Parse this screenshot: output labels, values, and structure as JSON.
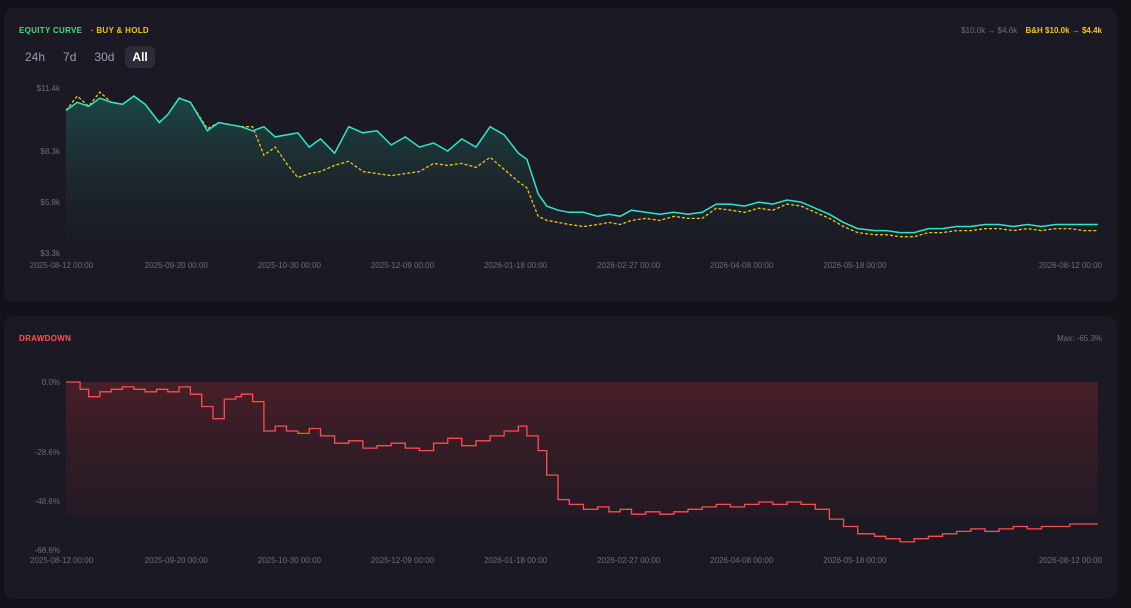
{
  "equity": {
    "title": "EQUITY CURVE",
    "bh_title": "· BUY & HOLD",
    "summary_strategy": "$10.0k → $4.6k",
    "summary_bh": "B&H $10.0k → $4.4k",
    "tabs": [
      {
        "label": "24h",
        "active": false
      },
      {
        "label": "7d",
        "active": false
      },
      {
        "label": "30d",
        "active": false
      },
      {
        "label": "All",
        "active": true
      }
    ]
  },
  "drawdown": {
    "title": "DRAWDOWN",
    "max_label": "Max: -65.3%"
  },
  "colors": {
    "strategy": "#2ee6c6",
    "buy_hold": "#f1c40f",
    "drawdown": "#ff4d4d"
  },
  "chart_data": [
    {
      "type": "line",
      "title": "EQUITY CURVE",
      "y_ticks": [
        "$11.4k",
        "$8.3k",
        "$5.8k",
        "$3.3k"
      ],
      "y_tick_values": [
        11400,
        8300,
        5800,
        3300
      ],
      "x_ticks": [
        "2025-08-12 00:00",
        "2025-09-20 00:00",
        "2025-10-30 00:00",
        "2025-12-09 00:00",
        "2026-01-18 00:00",
        "2026-02-27 00:00",
        "2026-04-08 00:00",
        "2026-05-18 00:00",
        "2026-08-12 00:00"
      ],
      "x_tick_days": [
        0,
        39,
        79,
        119,
        159,
        199,
        239,
        279,
        365
      ],
      "ylim": [
        3300,
        11400
      ],
      "x_range_days": [
        0,
        365
      ],
      "series": [
        {
          "x": [
            0,
            4,
            8,
            12,
            16,
            20,
            24,
            28,
            33,
            36,
            40,
            44,
            50,
            54,
            58,
            62,
            66,
            70,
            74,
            78,
            82,
            86,
            90,
            95,
            100,
            105,
            110,
            115,
            120,
            125,
            130,
            135,
            140,
            145,
            150,
            155,
            160,
            163,
            167,
            170,
            174,
            178,
            183,
            188,
            192,
            196,
            200,
            205,
            210,
            215,
            220,
            225,
            230,
            235,
            240,
            245,
            250,
            255,
            260,
            265,
            270,
            275,
            280,
            286,
            290,
            295,
            300,
            305,
            310,
            315,
            320,
            325,
            330,
            335,
            340,
            345,
            350,
            355,
            360,
            365
          ],
          "values": [
            10300,
            10700,
            10500,
            10900,
            10700,
            10600,
            11000,
            10600,
            9700,
            10100,
            10900,
            10700,
            9300,
            9700,
            9600,
            9500,
            9300,
            9500,
            9000,
            9100,
            9200,
            8500,
            8900,
            8200,
            9500,
            9200,
            9300,
            8600,
            9000,
            8500,
            8700,
            8300,
            8900,
            8500,
            9500,
            9100,
            8200,
            7900,
            6200,
            5600,
            5400,
            5300,
            5300,
            5100,
            5200,
            5100,
            5400,
            5300,
            5200,
            5300,
            5200,
            5300,
            5700,
            5700,
            5600,
            5800,
            5700,
            5900,
            5800,
            5500,
            5200,
            4800,
            4500,
            4400,
            4400,
            4300,
            4300,
            4500,
            4500,
            4600,
            4600,
            4700,
            4700,
            4600,
            4700,
            4600,
            4700,
            4700,
            4700,
            4700
          ]
        },
        {
          "x": [
            0,
            4,
            8,
            12,
            16,
            20,
            24,
            28,
            33,
            36,
            40,
            44,
            50,
            54,
            58,
            62,
            66,
            70,
            74,
            78,
            82,
            86,
            90,
            95,
            100,
            105,
            110,
            115,
            120,
            125,
            130,
            135,
            140,
            145,
            150,
            155,
            160,
            163,
            167,
            170,
            174,
            178,
            183,
            188,
            192,
            196,
            200,
            205,
            210,
            215,
            220,
            225,
            230,
            235,
            240,
            245,
            250,
            255,
            260,
            265,
            270,
            275,
            280,
            286,
            290,
            295,
            300,
            305,
            310,
            315,
            320,
            325,
            330,
            335,
            340,
            345,
            350,
            355,
            360,
            365
          ],
          "values": [
            10300,
            11000,
            10500,
            11200,
            10700,
            10600,
            11000,
            10600,
            9700,
            10100,
            10900,
            10700,
            9400,
            9700,
            9600,
            9500,
            9500,
            8100,
            8500,
            7700,
            7000,
            7200,
            7300,
            7600,
            7800,
            7300,
            7200,
            7100,
            7200,
            7300,
            7700,
            7600,
            7700,
            7500,
            8000,
            7400,
            6800,
            6500,
            5100,
            4900,
            4800,
            4700,
            4600,
            4700,
            4800,
            4700,
            4900,
            5000,
            4900,
            5100,
            5000,
            5000,
            5500,
            5400,
            5300,
            5500,
            5400,
            5700,
            5600,
            5300,
            5000,
            4600,
            4300,
            4200,
            4200,
            4100,
            4100,
            4300,
            4300,
            4400,
            4400,
            4500,
            4500,
            4400,
            4500,
            4400,
            4500,
            4500,
            4400,
            4400
          ]
        }
      ]
    },
    {
      "type": "area",
      "title": "DRAWDOWN",
      "y_ticks": [
        "0.0%",
        "-28.6%",
        "-48.6%",
        "-68.6%"
      ],
      "y_tick_values": [
        0,
        -28.6,
        -48.6,
        -68.6
      ],
      "x_ticks": [
        "2025-08-12 00:00",
        "2025-09-20 00:00",
        "2025-10-30 00:00",
        "2025-12-09 00:00",
        "2026-01-18 00:00",
        "2026-02-27 00:00",
        "2026-04-08 00:00",
        "2026-05-18 00:00",
        "2026-08-12 00:00"
      ],
      "x_tick_days": [
        0,
        39,
        79,
        119,
        159,
        199,
        239,
        279,
        365
      ],
      "ylim": [
        -68.6,
        0
      ],
      "x_range_days": [
        0,
        365
      ],
      "series": [
        {
          "x": [
            0,
            5,
            8,
            12,
            16,
            20,
            24,
            28,
            32,
            36,
            40,
            44,
            48,
            52,
            56,
            60,
            62,
            66,
            70,
            74,
            78,
            82,
            86,
            90,
            95,
            100,
            105,
            110,
            115,
            120,
            125,
            130,
            135,
            140,
            145,
            150,
            155,
            160,
            163,
            167,
            170,
            174,
            178,
            183,
            188,
            192,
            196,
            200,
            205,
            210,
            215,
            220,
            225,
            230,
            235,
            240,
            245,
            250,
            255,
            260,
            265,
            270,
            275,
            280,
            286,
            290,
            295,
            300,
            305,
            310,
            315,
            320,
            325,
            330,
            335,
            340,
            345,
            350,
            355,
            360,
            365
          ],
          "values": [
            0,
            -3,
            -6,
            -4,
            -3,
            -2,
            -3,
            -4,
            -3,
            -4,
            -2,
            -5,
            -10,
            -15,
            -7,
            -6,
            -5,
            -8,
            -20,
            -18,
            -20,
            -21,
            -19,
            -22,
            -25,
            -24,
            -27,
            -26,
            -25,
            -27,
            -28,
            -25,
            -23,
            -26,
            -24,
            -22,
            -20,
            -18,
            -22,
            -28,
            -38,
            -48,
            -50,
            -52,
            -51,
            -53,
            -52,
            -54,
            -53,
            -54,
            -53,
            -52,
            -51,
            -50,
            -51,
            -50,
            -49,
            -50,
            -49,
            -50,
            -52,
            -56,
            -59,
            -62,
            -63,
            -64,
            -65.3,
            -64,
            -63,
            -62,
            -61,
            -60,
            -61,
            -60,
            -59,
            -60,
            -59,
            -59,
            -58,
            -58,
            -58
          ]
        }
      ]
    }
  ]
}
